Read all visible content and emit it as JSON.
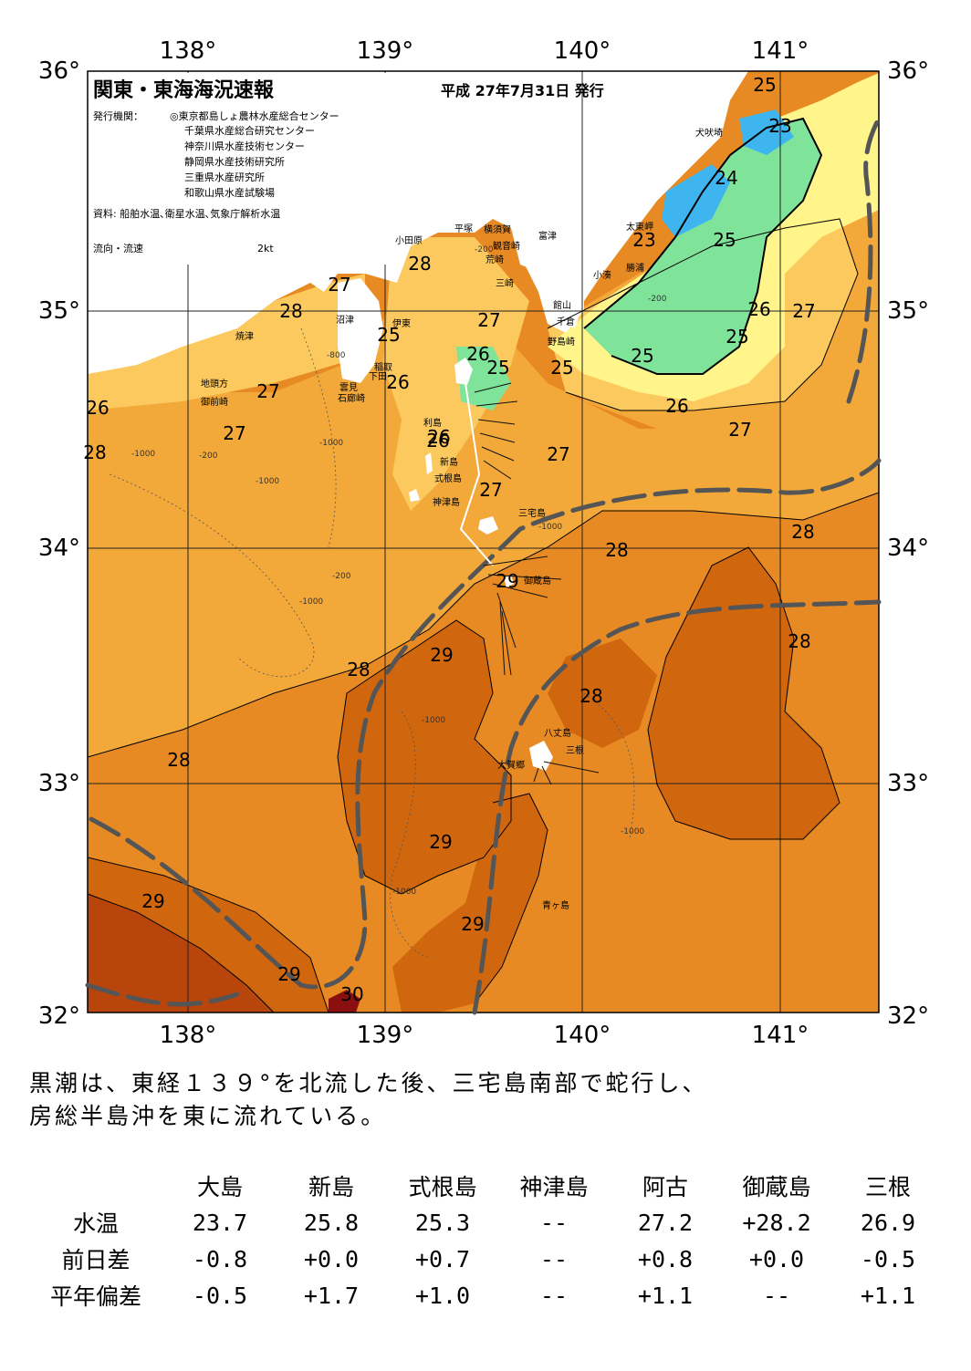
{
  "header": {
    "title": "関東・東海海況速報",
    "date": "平成 27年7月31日 発行",
    "publisher_label": "発行機関：",
    "publishers": [
      "◎東京都島しょ農林水産総合センター",
      "千葉県水産総合研究センター",
      "神奈川県水産技術センター",
      "静岡県水産技術研究所",
      "三重県水産研究所",
      "和歌山県水産試験場"
    ],
    "source": "資料: 船舶水温､衛星水温､気象庁解析水温",
    "legend_label": "流向・流速",
    "legend_speed": "2kt"
  },
  "axes": {
    "lon_top": [
      "138°",
      "139°",
      "140°",
      "141°"
    ],
    "lon_bottom": [
      "138°",
      "139°",
      "140°",
      "141°"
    ],
    "lat_left": [
      "36°",
      "35°",
      "34°",
      "33°",
      "32°"
    ],
    "lat_right": [
      "36°",
      "35°",
      "34°",
      "33°",
      "32°"
    ]
  },
  "isotherm_labels": [
    "25",
    "23",
    "24",
    "25",
    "23",
    "25",
    "26",
    "27",
    "25",
    "25",
    "26",
    "27",
    "27",
    "28",
    "28",
    "27",
    "25",
    "26",
    "28",
    "26",
    "25",
    "26",
    "27",
    "26",
    "26",
    "27",
    "27",
    "27",
    "28",
    "28",
    "29",
    "28",
    "29",
    "28",
    "28",
    "28",
    "29",
    "29",
    "29",
    "29",
    "30"
  ],
  "depth_labels": [
    "-200",
    "-800",
    "-1000",
    "-200",
    "-1000",
    "-1000",
    "-1000",
    "-200",
    "-1000",
    "-1000",
    "-1000",
    "-1000",
    "-200"
  ],
  "places": [
    "犬吠埼",
    "太東岬",
    "勝浦",
    "小湊",
    "富津",
    "館山",
    "千倉",
    "野島崎",
    "横須賀",
    "観音崎",
    "荒崎",
    "三崎",
    "平塚",
    "小田原",
    "沼津",
    "焼津",
    "伊東",
    "稲取",
    "下田",
    "雲見",
    "石廊崎",
    "地頭方",
    "御前崎",
    "利島",
    "新島",
    "式根島",
    "神津島",
    "三宅島",
    "御蔵島",
    "八丈島",
    "三根",
    "大賀郷",
    "青ヶ島"
  ],
  "colors": {
    "t23": "#3fb5f0",
    "t24": "#7fe39a",
    "t25": "#fff58a",
    "t26": "#fcc95e",
    "t27": "#f2a93a",
    "t28": "#e88a23",
    "t29": "#d0670f",
    "t30": "#b8450c",
    "t31": "#8a1010",
    "land": "#ffffff",
    "kuroshio_axis": "#555555"
  },
  "summary": {
    "line1": "黒潮は、東経１３９°を北流した後、三宅島南部で蛇行し、",
    "line2": "房総半島沖を東に流れている。"
  },
  "table": {
    "stations": [
      "大島",
      "新島",
      "式根島",
      "神津島",
      "阿古",
      "御蔵島",
      "三根"
    ],
    "rows": [
      {
        "label": "水温",
        "values": [
          "23.7",
          "25.8",
          "25.3",
          "--",
          "27.2",
          "+28.2",
          "26.9"
        ]
      },
      {
        "label": "前日差",
        "values": [
          "-0.8",
          "+0.0",
          "+0.7",
          "--",
          "+0.8",
          "+0.0",
          "-0.5"
        ]
      },
      {
        "label": "平年偏差",
        "values": [
          "-0.5",
          "+1.7",
          "+1.0",
          "--",
          "+1.1",
          "--",
          "+1.1"
        ]
      }
    ]
  }
}
